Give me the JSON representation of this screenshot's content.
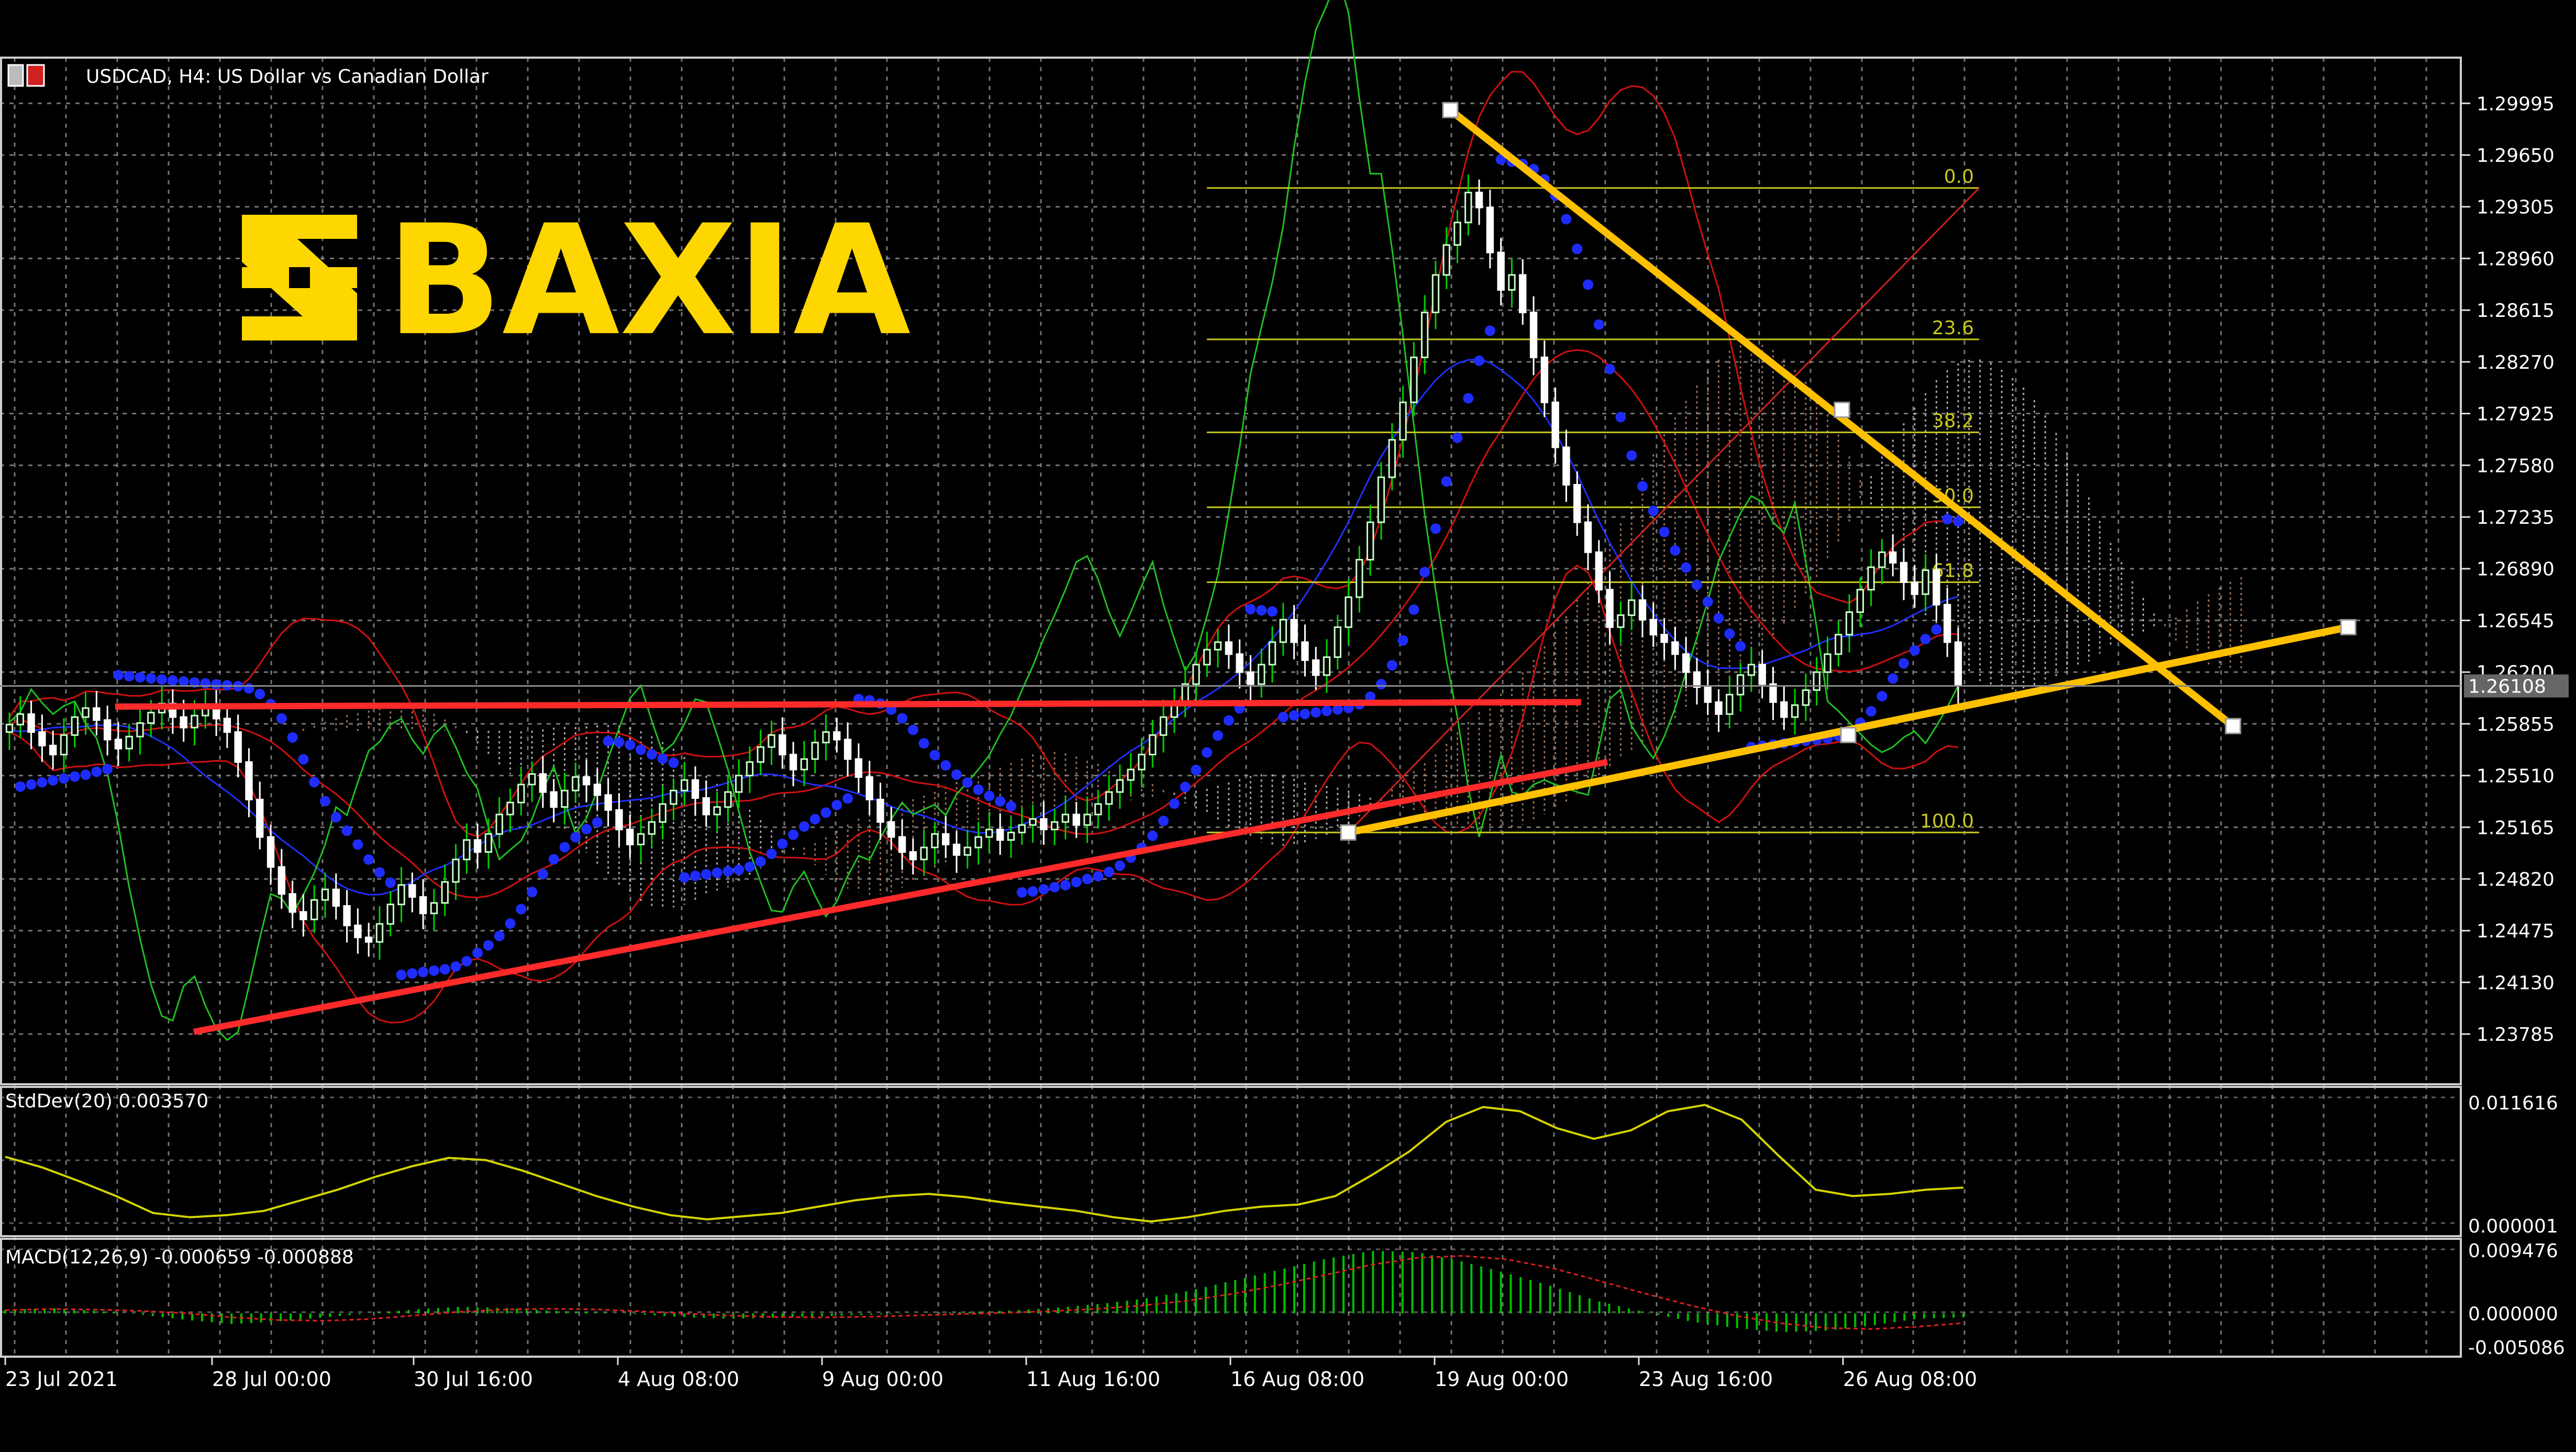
{
  "header": {
    "symbol_title": "USDCAD, H4:  US Dollar vs Canadian Dollar"
  },
  "logo": {
    "text": "BAXIA",
    "color": "#FFD700"
  },
  "colors": {
    "background": "#000000",
    "grid": "#9a9a9a",
    "panel_border": "#cfcfcf",
    "bull_candle": "#c8ffc8",
    "bear_candle": "#ffffff",
    "wick_up": "#00d000",
    "wick_down": "#ffffff",
    "sar": "#1e2cff",
    "bollinger": "#d01010",
    "trendline_red": "#ff2a2a",
    "trendline_yellow": "#ffc000",
    "fib": "#c8c820",
    "stddev_line": "#d4d400",
    "macd_hist": "#00c000",
    "macd_signal": "#e02020",
    "price_label_bg": "#666666"
  },
  "chart_data": {
    "type": "line",
    "title": "USDCAD, H4:  US Dollar vs Canadian Dollar",
    "price_axis_ticks": [
      "1.29995",
      "1.29650",
      "1.29305",
      "1.28960",
      "1.28615",
      "1.28270",
      "1.27925",
      "1.27580",
      "1.27235",
      "1.26890",
      "1.26545",
      "1.26200",
      "1.25855",
      "1.25510",
      "1.25165",
      "1.24820",
      "1.24475",
      "1.24130",
      "1.23785"
    ],
    "ylim": [
      1.2345,
      1.303
    ],
    "current_price": "1.26108",
    "time_axis_labels": [
      "23 Jul 2021",
      "28 Jul 00:00",
      "30 Jul 16:00",
      "4 Aug 08:00",
      "9 Aug 00:00",
      "11 Aug 16:00",
      "16 Aug 08:00",
      "19 Aug 00:00",
      "23 Aug 16:00",
      "26 Aug 08:00"
    ],
    "bars_visible": 240,
    "series": [
      {
        "indicator": "price",
        "close": [
          1.2585,
          1.2592,
          1.258,
          1.2571,
          1.2565,
          1.2578,
          1.259,
          1.2596,
          1.2588,
          1.2575,
          1.2569,
          1.2577,
          1.2586,
          1.2593,
          1.2599,
          1.259,
          1.2583,
          1.2591,
          1.2597,
          1.2589,
          1.258,
          1.256,
          1.2535,
          1.251,
          1.249,
          1.2472,
          1.246,
          1.2455,
          1.2468,
          1.2475,
          1.2464,
          1.2451,
          1.2443,
          1.244,
          1.2452,
          1.2465,
          1.2478,
          1.247,
          1.2459,
          1.2466,
          1.248,
          1.2495,
          1.2508,
          1.25,
          1.2512,
          1.2525,
          1.2533,
          1.2545,
          1.2552,
          1.254,
          1.253,
          1.2541,
          1.255,
          1.2545,
          1.2538,
          1.2528,
          1.2515,
          1.2505,
          1.2512,
          1.252,
          1.2532,
          1.2541,
          1.2548,
          1.2536,
          1.2525,
          1.253,
          1.254,
          1.2551,
          1.256,
          1.257,
          1.2578,
          1.2565,
          1.2555,
          1.2562,
          1.2573,
          1.258,
          1.2575,
          1.2562,
          1.255,
          1.2535,
          1.252,
          1.251,
          1.25,
          1.2495,
          1.2503,
          1.2512,
          1.2505,
          1.2498,
          1.2503,
          1.251,
          1.2515,
          1.2508,
          1.2513,
          1.2518,
          1.2522,
          1.2515,
          1.252,
          1.2525,
          1.2518,
          1.2525,
          1.2532,
          1.254,
          1.2548,
          1.2555,
          1.2565,
          1.2578,
          1.259,
          1.26,
          1.2612,
          1.2625,
          1.2635,
          1.264,
          1.2632,
          1.262,
          1.2612,
          1.2625,
          1.264,
          1.2655,
          1.264,
          1.2628,
          1.2618,
          1.263,
          1.265,
          1.267,
          1.2695,
          1.272,
          1.275,
          1.2775,
          1.28,
          1.283,
          1.286,
          1.2885,
          1.2905,
          1.292,
          1.294,
          1.293,
          1.29,
          1.2875,
          1.2885,
          1.286,
          1.283,
          1.28,
          1.277,
          1.2745,
          1.272,
          1.27,
          1.2675,
          1.265,
          1.2658,
          1.2668,
          1.2655,
          1.2645,
          1.264,
          1.2632,
          1.262,
          1.261,
          1.26,
          1.2592,
          1.2605,
          1.2618,
          1.2625,
          1.2612,
          1.26,
          1.259,
          1.2598,
          1.2608,
          1.262,
          1.2632,
          1.2645,
          1.266,
          1.2675,
          1.269,
          1.27,
          1.2693,
          1.268,
          1.2672,
          1.2688,
          1.2665,
          1.264,
          1.2611
        ]
      },
      {
        "indicator": "StdDev",
        "name": "StdDev(20) 0.003570",
        "ylim": [
          1e-06,
          0.011616
        ],
        "ticks": [
          "0.011616",
          "0.000001"
        ],
        "values": [
          0.0065,
          0.0055,
          0.0042,
          0.0028,
          0.0012,
          0.0008,
          0.001,
          0.0014,
          0.0024,
          0.0034,
          0.0046,
          0.0056,
          0.0064,
          0.0062,
          0.0052,
          0.004,
          0.0028,
          0.0018,
          0.001,
          0.0006,
          0.0009,
          0.0012,
          0.0018,
          0.0024,
          0.0028,
          0.003,
          0.0027,
          0.0022,
          0.0018,
          0.0014,
          0.0008,
          0.0004,
          0.0008,
          0.0014,
          0.0018,
          0.002,
          0.0028,
          0.0048,
          0.007,
          0.0098,
          0.0112,
          0.0108,
          0.0092,
          0.0082,
          0.009,
          0.0108,
          0.0114,
          0.01,
          0.0066,
          0.0034,
          0.0028,
          0.003,
          0.0034,
          0.0036
        ]
      },
      {
        "indicator": "MACD",
        "name": "MACD(12,26,9) -0.000659 -0.000888",
        "ylim": [
          -0.005086,
          0.009476
        ],
        "ticks": [
          "0.009476",
          "0.000000",
          "-0.005086"
        ],
        "values": [
          0.0005,
          0.0008,
          0.0004,
          -0.0002,
          -0.001,
          -0.0016,
          -0.0012,
          -0.0006,
          0.0,
          0.0006,
          0.001,
          0.0008,
          0.0004,
          0.0002,
          -0.0002,
          -0.0006,
          -0.0008,
          -0.0006,
          -0.0004,
          -0.0002,
          0.0,
          0.0002,
          0.0004,
          0.0008,
          0.0014,
          0.0022,
          0.0034,
          0.005,
          0.0066,
          0.0082,
          0.0094,
          0.0092,
          0.0078,
          0.006,
          0.004,
          0.0018,
          0.0002,
          -0.0012,
          -0.0022,
          -0.0028,
          -0.0026,
          -0.0018,
          -0.0008,
          -0.0006
        ]
      }
    ],
    "fibonacci_levels": [
      {
        "label": "0.0",
        "price": 1.2943
      },
      {
        "label": "23.6",
        "price": 1.2842
      },
      {
        "label": "38.2",
        "price": 1.278
      },
      {
        "label": "50.0",
        "price": 1.273
      },
      {
        "label": "61.8",
        "price": 1.268
      },
      {
        "label": "100.0",
        "price": 1.2513
      }
    ],
    "grid": true
  }
}
